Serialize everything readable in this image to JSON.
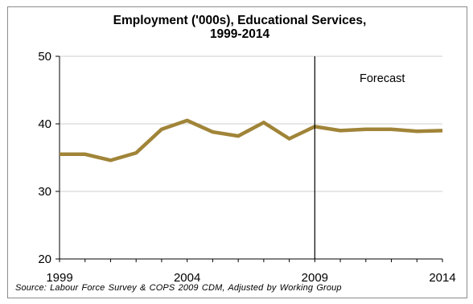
{
  "chart_data": {
    "type": "line",
    "title_lines": [
      "Employment ('000s), Educational Services,",
      "1999-2014"
    ],
    "xlabel": "",
    "ylabel": "",
    "xlim": [
      1999,
      2014
    ],
    "ylim": [
      20,
      50
    ],
    "y_ticks": [
      20,
      30,
      40,
      50
    ],
    "x_tick_labels": [
      "1999",
      "2004",
      "2009",
      "2014"
    ],
    "grid": "horizontal",
    "series": [
      {
        "color": "#a08438",
        "x": [
          1999,
          2000,
          2001,
          2002,
          2003,
          2004,
          2005,
          2006,
          2007,
          2008,
          2009,
          2010,
          2011,
          2012,
          2013,
          2014
        ],
        "y": [
          35.5,
          35.5,
          34.6,
          35.7,
          39.2,
          40.5,
          38.8,
          38.2,
          40.2,
          37.8,
          39.6,
          39.0,
          39.2,
          39.2,
          38.9,
          39.0
        ]
      }
    ],
    "annotations": [
      {
        "text": "Forecast",
        "x": 2009
      }
    ],
    "source": "Source:  Labour Force Survey & COPS 2009 CDM, Adjusted  by Working Group"
  }
}
